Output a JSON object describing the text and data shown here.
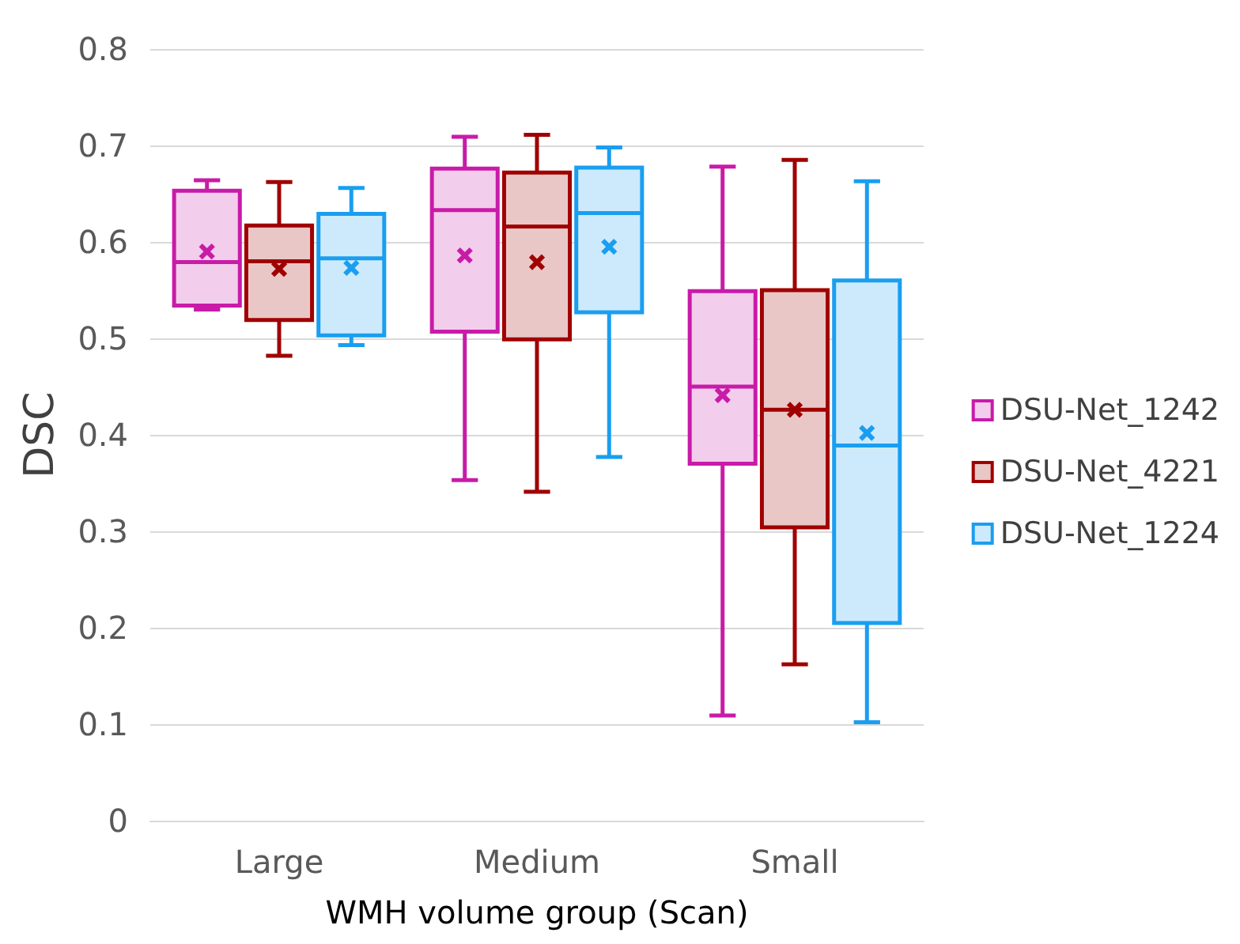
{
  "chart_data": {
    "type": "box",
    "xlabel": "WMH volume group (Scan)",
    "ylabel": "DSC",
    "categories": [
      "Large",
      "Medium",
      "Small"
    ],
    "ylim": [
      0,
      0.8
    ],
    "yticks": [
      0,
      0.1,
      0.2,
      0.3,
      0.4,
      0.5,
      0.6,
      0.7,
      0.8
    ],
    "grid": "y",
    "legend": "right",
    "series": [
      {
        "name": "DSU-Net_1242",
        "color": "#c81ba8",
        "boxes": [
          {
            "low": 0.53,
            "q1": 0.534,
            "median": 0.579,
            "q3": 0.653,
            "high": 0.664,
            "mean": 0.59
          },
          {
            "low": 0.353,
            "q1": 0.507,
            "median": 0.633,
            "q3": 0.676,
            "high": 0.709,
            "mean": 0.586
          },
          {
            "low": 0.109,
            "q1": 0.37,
            "median": 0.45,
            "q3": 0.549,
            "high": 0.678,
            "mean": 0.441
          }
        ]
      },
      {
        "name": "DSU-Net_4221",
        "color": "#a00000",
        "boxes": [
          {
            "low": 0.482,
            "q1": 0.519,
            "median": 0.58,
            "q3": 0.617,
            "high": 0.662,
            "mean": 0.572
          },
          {
            "low": 0.341,
            "q1": 0.499,
            "median": 0.616,
            "q3": 0.672,
            "high": 0.711,
            "mean": 0.579
          },
          {
            "low": 0.162,
            "q1": 0.304,
            "median": 0.426,
            "q3": 0.55,
            "high": 0.685,
            "mean": 0.426
          }
        ]
      },
      {
        "name": "DSU-Net_1224",
        "color": "#1a9ef0",
        "boxes": [
          {
            "low": 0.493,
            "q1": 0.503,
            "median": 0.583,
            "q3": 0.629,
            "high": 0.656,
            "mean": 0.573
          },
          {
            "low": 0.377,
            "q1": 0.527,
            "median": 0.63,
            "q3": 0.677,
            "high": 0.698,
            "mean": 0.595
          },
          {
            "low": 0.102,
            "q1": 0.205,
            "median": 0.389,
            "q3": 0.56,
            "high": 0.663,
            "mean": 0.402
          }
        ]
      }
    ]
  }
}
